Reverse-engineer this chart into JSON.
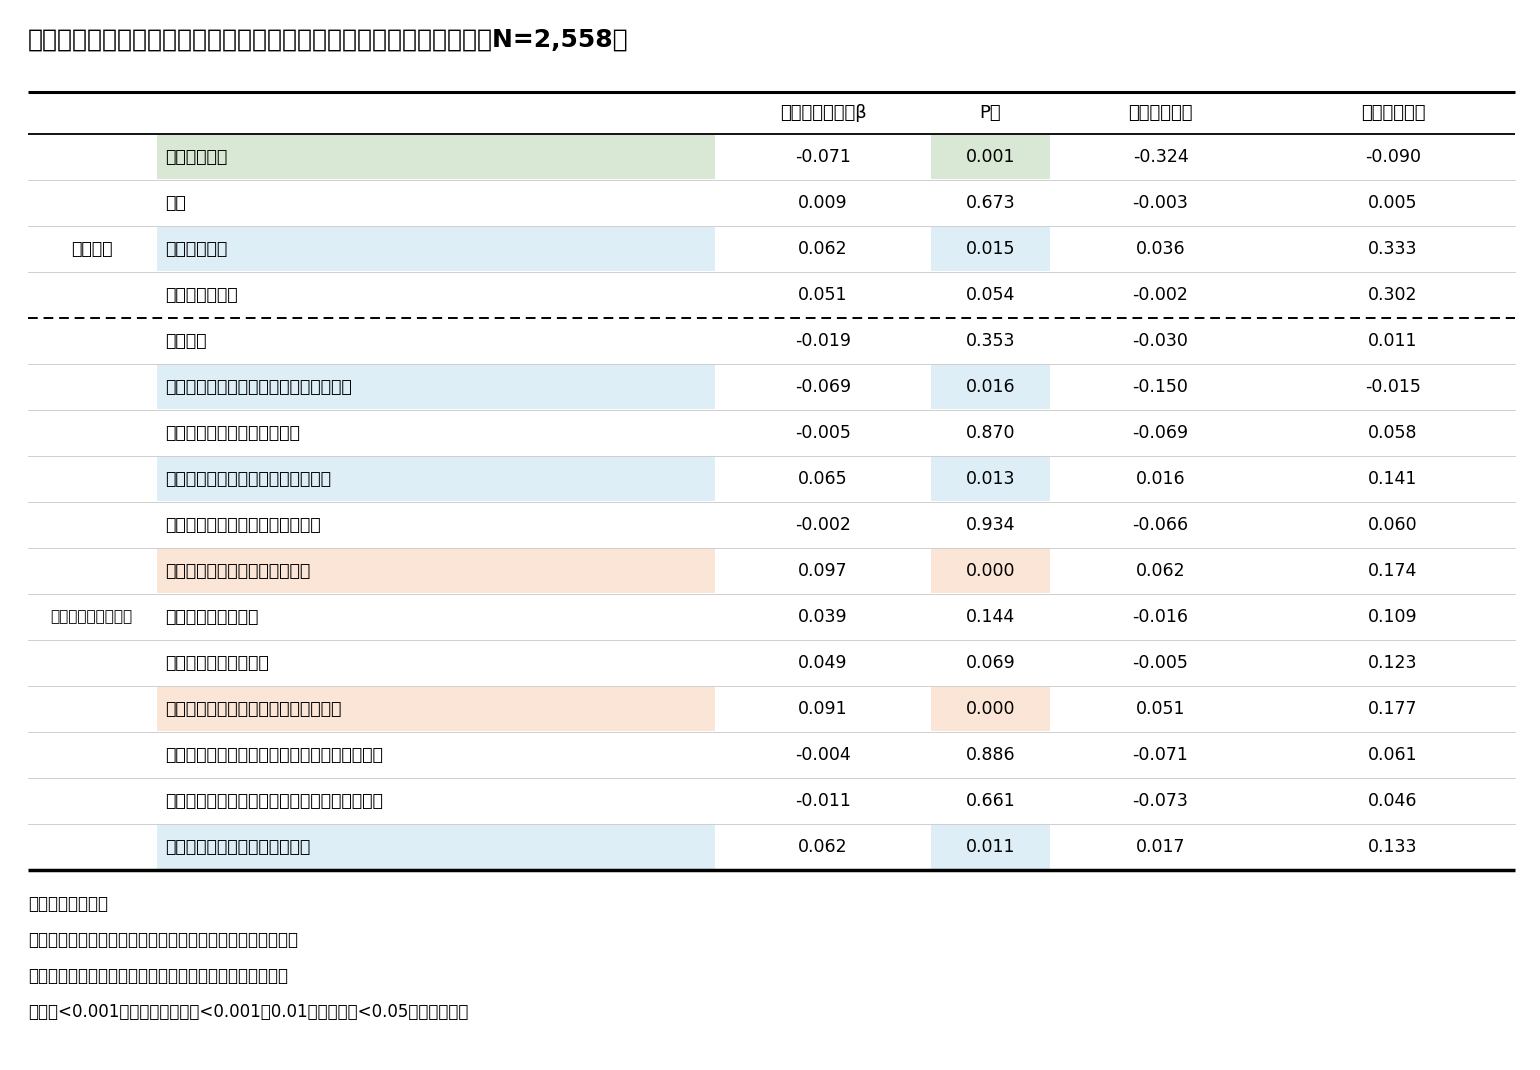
{
  "title": "図表６．政府の少子化対策への期待に関する要因分析（多変量解析；N=2,558）",
  "rows": [
    {
      "group": "基本属性",
      "label": "性別（男性）",
      "beta": -0.071,
      "p": 0.001,
      "ci_low": -0.324,
      "ci_high": -0.09,
      "row_bg": "#d9e8d4",
      "p_bg": "#d9e8d4"
    },
    {
      "group": "",
      "label": "年齢",
      "beta": 0.009,
      "p": 0.673,
      "ci_low": -0.003,
      "ci_high": 0.005,
      "row_bg": null,
      "p_bg": null
    },
    {
      "group": "",
      "label": "婚姻（既婚）",
      "beta": 0.062,
      "p": 0.015,
      "ci_low": 0.036,
      "ci_high": 0.333,
      "row_bg": "#ddeef7",
      "p_bg": "#ddeef7"
    },
    {
      "group": "",
      "label": "子ども（あり）",
      "beta": 0.051,
      "p": 0.054,
      "ci_low": -0.002,
      "ci_high": 0.302,
      "row_bg": null,
      "p_bg": null
    },
    {
      "group": "",
      "label": "世帯収入",
      "beta": -0.019,
      "p": 0.353,
      "ci_low": -0.03,
      "ci_high": 0.011,
      "row_bg": null,
      "p_bg": null
    },
    {
      "group": "",
      "label": "若い世代の経済環境が厳しくなっている",
      "beta": -0.069,
      "p": 0.016,
      "ci_low": -0.15,
      "ci_high": -0.015,
      "row_bg": "#ddeef7",
      "p_bg": "#ddeef7"
    },
    {
      "group": "",
      "label": "子育てにお金がかかりすぎる",
      "beta": -0.005,
      "p": 0.87,
      "ci_low": -0.069,
      "ci_high": 0.058,
      "row_bg": null,
      "p_bg": null
    },
    {
      "group": "",
      "label": "子育て支援環境が整備されていない",
      "beta": 0.065,
      "p": 0.013,
      "ci_low": 0.016,
      "ci_high": 0.141,
      "row_bg": "#ddeef7",
      "p_bg": "#ddeef7"
    },
    {
      "group": "",
      "label": "若い世代の価値観が変容している",
      "beta": -0.002,
      "p": 0.934,
      "ci_low": -0.066,
      "ci_high": 0.06,
      "row_bg": null,
      "p_bg": null
    },
    {
      "group": "",
      "label": "出会いの場や婚活の機会がない",
      "beta": 0.097,
      "p": 0.0,
      "ci_low": 0.062,
      "ci_high": 0.174,
      "row_bg": "#fbe5d6",
      "p_bg": "#fbe5d6"
    },
    {
      "group": "少子化進行への認識",
      "label": "未（非）婚化が原因",
      "beta": 0.039,
      "p": 0.144,
      "ci_low": -0.016,
      "ci_high": 0.109,
      "row_bg": null,
      "p_bg": null
    },
    {
      "group": "",
      "label": "晩婚化や晩産化が原因",
      "beta": 0.049,
      "p": 0.069,
      "ci_low": -0.005,
      "ci_high": 0.123,
      "row_bg": null,
      "p_bg": null
    },
    {
      "group": "",
      "label": "核家族化などで、育児協力者が減った",
      "beta": 0.091,
      "p": 0.0,
      "ci_low": 0.051,
      "ci_high": 0.177,
      "row_bg": "#fbe5d6",
      "p_bg": "#fbe5d6"
    },
    {
      "group": "",
      "label": "子育てによる身体的・精神的負担が大きすぎる",
      "beta": -0.004,
      "p": 0.886,
      "ci_low": -0.071,
      "ci_high": 0.061,
      "row_bg": null,
      "p_bg": null
    },
    {
      "group": "",
      "label": "子育てによって自分の時間が確保しにくくなる",
      "beta": -0.011,
      "p": 0.661,
      "ci_low": -0.073,
      "ci_high": 0.046,
      "row_bg": null,
      "p_bg": null
    },
    {
      "group": "",
      "label": "男性の育児参加が進んでいない",
      "beta": 0.062,
      "p": 0.011,
      "ci_low": 0.017,
      "ci_high": 0.133,
      "row_bg": "#ddeef7",
      "p_bg": "#ddeef7"
    }
  ],
  "notes": [
    "注１）重回帰分析",
    "注２）従属変数：政府の少子化対策への期待度（逆転項目）",
    "注３）少子化進行への認識に関する設問は、全て逆転項目",
    "注４）<0.001未満：赤マーカ、<0.001～0.01緑マーカ、<0.05未満青マーカ"
  ],
  "group1_label": "基本属性",
  "group1_rows": [
    0,
    4
  ],
  "group2_label": "少子化進行への認識",
  "group2_rows": [
    5,
    15
  ],
  "dotted_line_after_row": 4,
  "bg_color": "#ffffff",
  "header_beta": "標準偏回帰係数β",
  "header_p": "P値",
  "header_ci_low": "信頼区間下限",
  "header_ci_high": "信頼区間上限"
}
